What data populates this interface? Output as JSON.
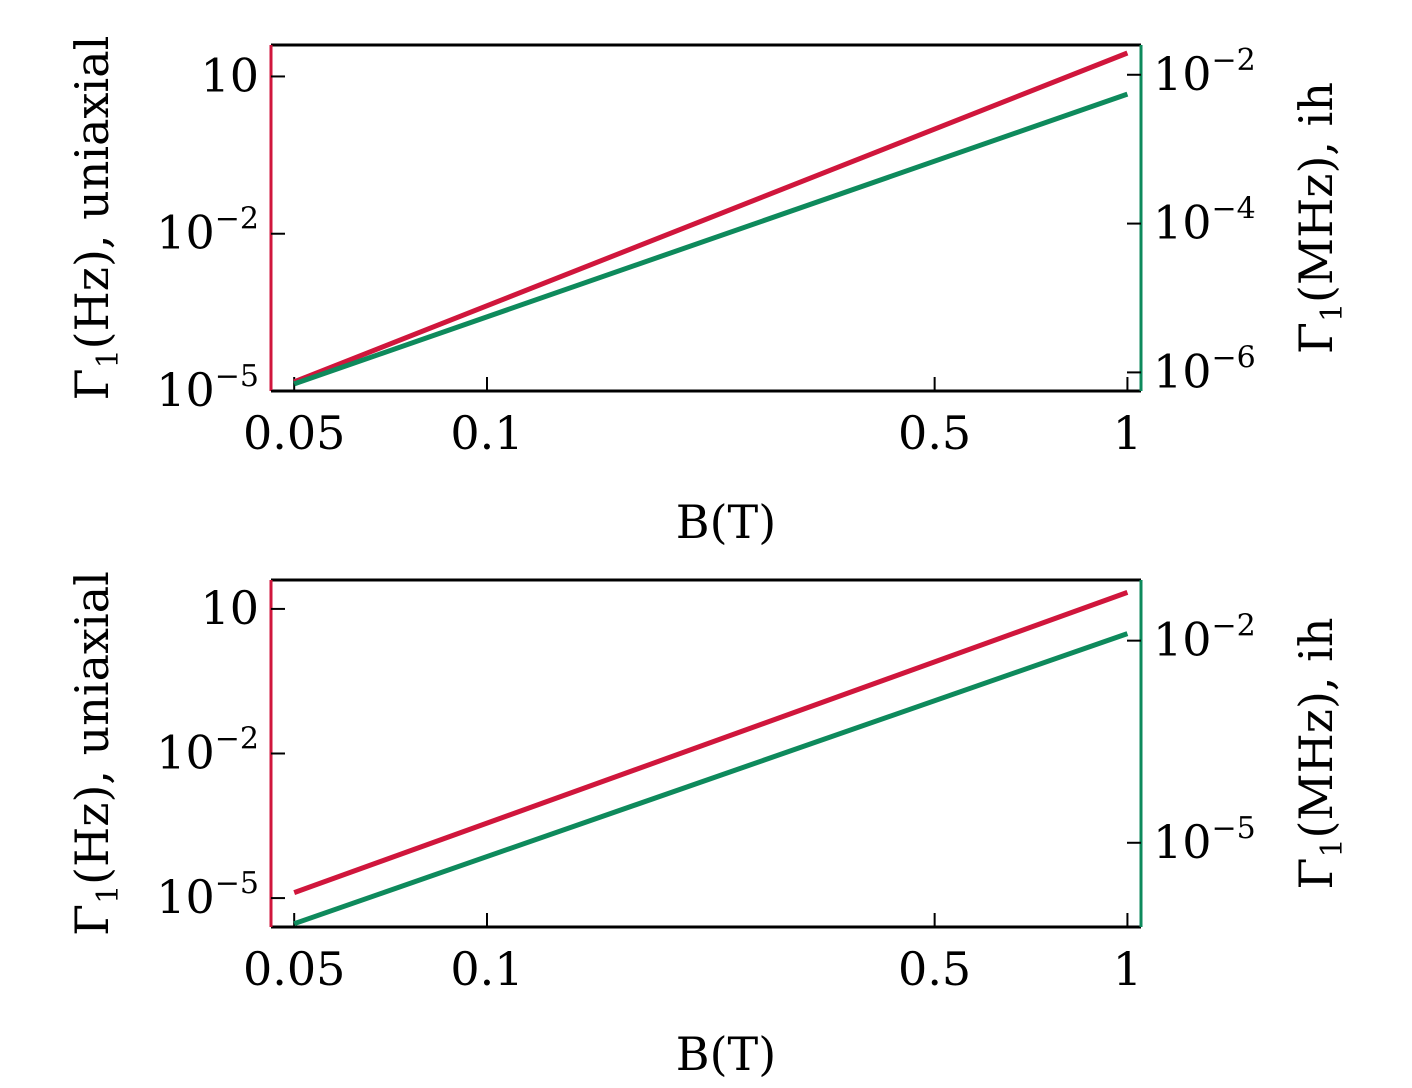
{
  "colors": {
    "uniaxial": "#d0163c",
    "ih": "#0e8a5c",
    "frame": "#000000"
  },
  "chart_data": [
    {
      "type": "line",
      "panel": "top",
      "xlabel": "B(T)",
      "xscale": "log",
      "xlim": [
        0.046,
        1.05
      ],
      "xticks": [
        {
          "v": 0.05,
          "label": "0.05"
        },
        {
          "v": 0.1,
          "label": "0.1"
        },
        {
          "v": 0.5,
          "label": "0.5"
        },
        {
          "v": 1,
          "label": "1"
        }
      ],
      "ylabel_left": {
        "sym": "Γ",
        "sub": "1",
        "rest": "(Hz), uniaxial"
      },
      "ylabel_right": {
        "sym": "Γ",
        "sub": "1",
        "rest": "(MHz), ih"
      },
      "yscale_left": "log",
      "ylim_left_exp": [
        -5,
        1.6
      ],
      "yticks_left": [
        {
          "exp": 1,
          "base": "10",
          "sup": ""
        },
        {
          "exp": -2,
          "base": "10",
          "sup": "−2"
        },
        {
          "exp": -5,
          "base": "10",
          "sup": "−5"
        }
      ],
      "yscale_right": "log",
      "ylim_right_exp": [
        -6.25,
        -1.6
      ],
      "yticks_right": [
        {
          "exp": -2,
          "base": "10",
          "sup": "−2"
        },
        {
          "exp": -4,
          "base": "10",
          "sup": "−4"
        },
        {
          "exp": -6,
          "base": "10",
          "sup": "−6"
        }
      ],
      "series": [
        {
          "axis": "left",
          "color": "#d0163c",
          "x": [
            0.05,
            1
          ],
          "y": [
            1.5e-05,
            28
          ]
        },
        {
          "axis": "right",
          "color": "#0e8a5c",
          "x": [
            0.05,
            1
          ],
          "y": [
            7e-07,
            0.0055
          ]
        }
      ]
    },
    {
      "type": "line",
      "panel": "bottom",
      "xlabel": "B(T)",
      "xscale": "log",
      "xlim": [
        0.046,
        1.05
      ],
      "xticks": [
        {
          "v": 0.05,
          "label": "0.05"
        },
        {
          "v": 0.1,
          "label": "0.1"
        },
        {
          "v": 0.5,
          "label": "0.5"
        },
        {
          "v": 1,
          "label": "1"
        }
      ],
      "ylabel_left": {
        "sym": "Γ",
        "sub": "1",
        "rest": "(Hz), uniaxial"
      },
      "ylabel_right": {
        "sym": "Γ",
        "sub": "1",
        "rest": "(MHz), ih"
      },
      "yscale_left": "log",
      "ylim_left_exp": [
        -5.6,
        1.6
      ],
      "yticks_left": [
        {
          "exp": 1,
          "base": "10",
          "sup": ""
        },
        {
          "exp": -2,
          "base": "10",
          "sup": "−2"
        },
        {
          "exp": -5,
          "base": "10",
          "sup": "−5"
        }
      ],
      "yscale_right": "log",
      "ylim_right_exp": [
        -6.25,
        -1.1
      ],
      "yticks_right": [
        {
          "exp": -2,
          "base": "10",
          "sup": "−2"
        },
        {
          "exp": -5,
          "base": "10",
          "sup": "−5"
        }
      ],
      "series": [
        {
          "axis": "left",
          "color": "#d0163c",
          "x": [
            0.05,
            1
          ],
          "y": [
            1.3e-05,
            22
          ]
        },
        {
          "axis": "right",
          "color": "#0e8a5c",
          "x": [
            0.05,
            1
          ],
          "y": [
            6.3e-07,
            0.0127
          ]
        }
      ]
    }
  ]
}
